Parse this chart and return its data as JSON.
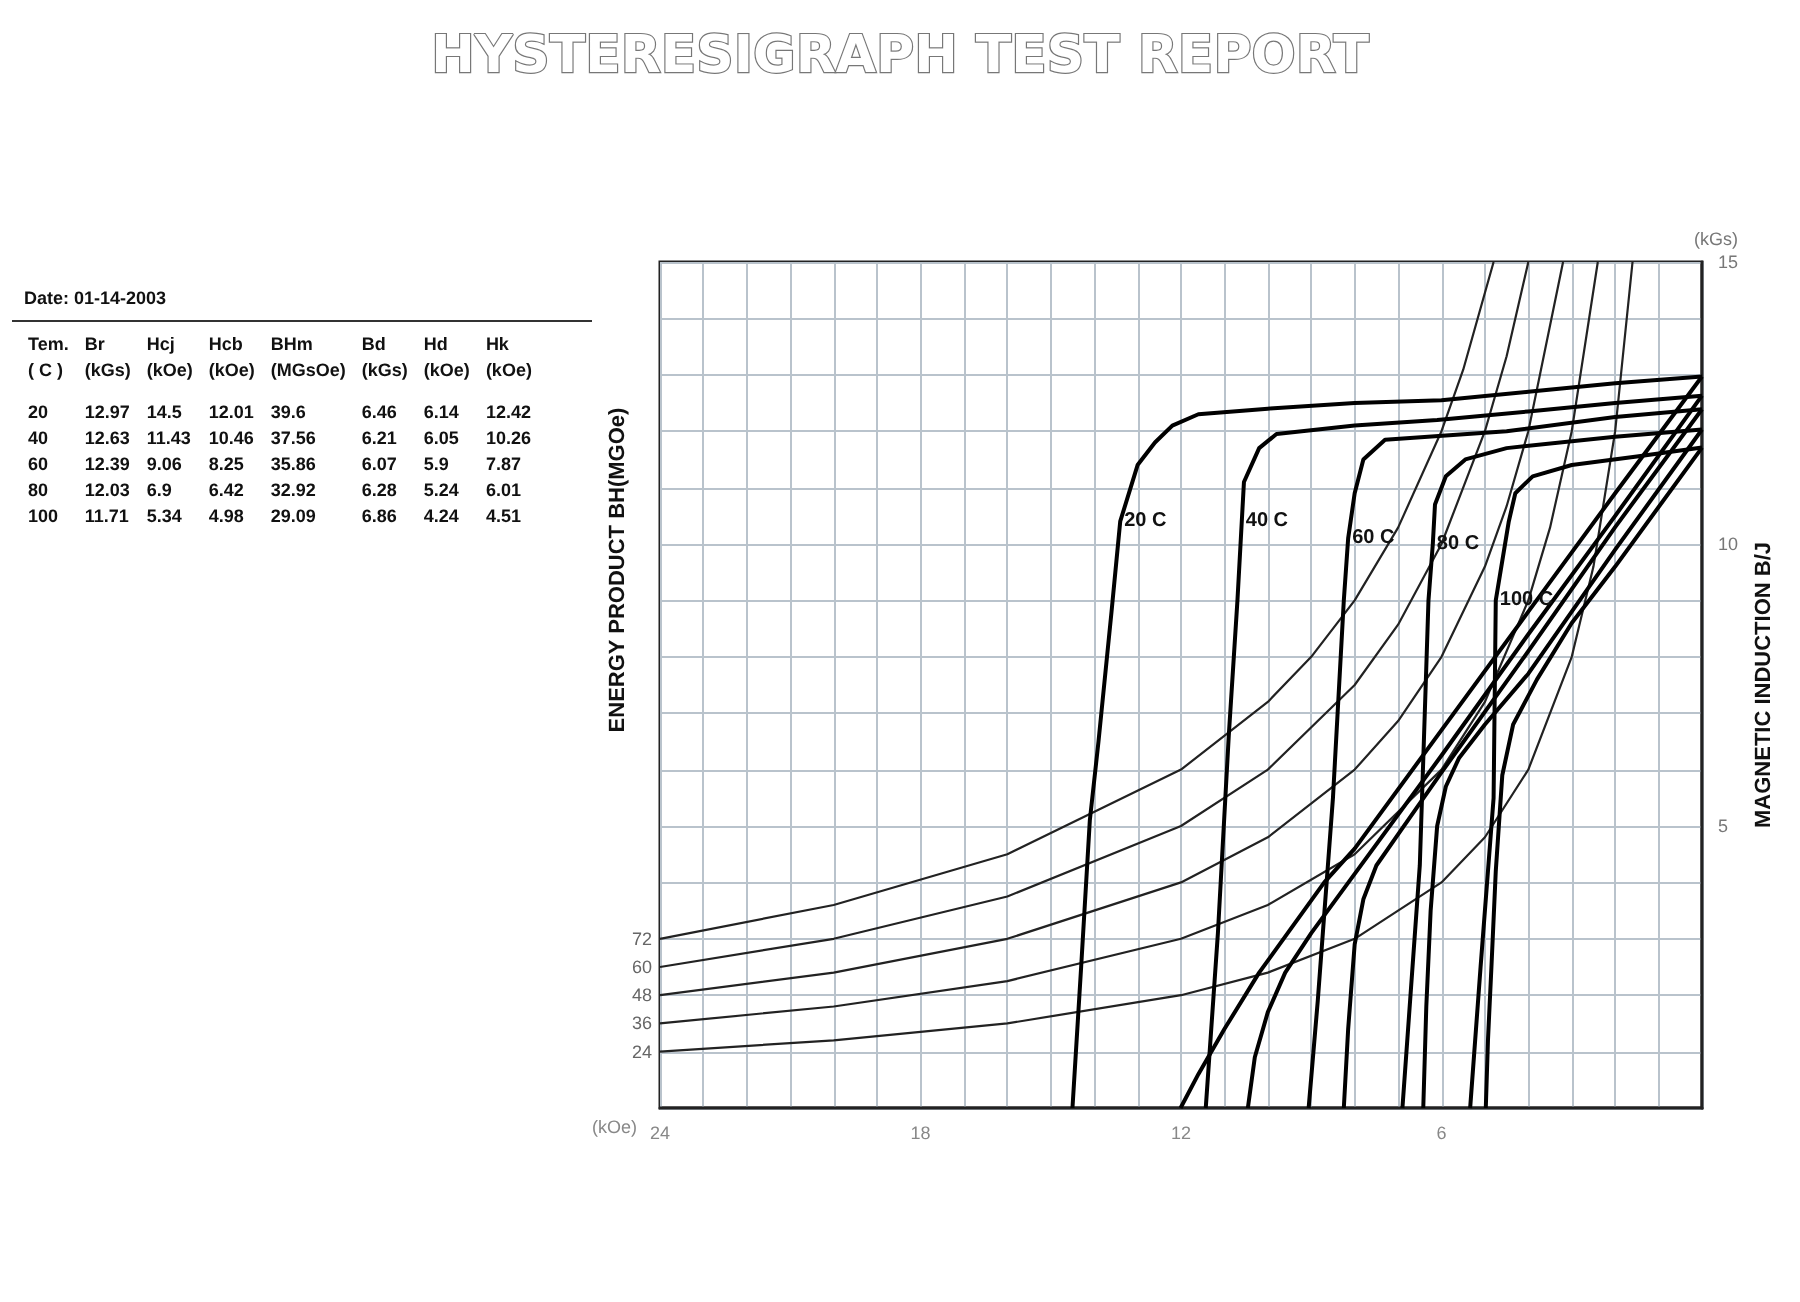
{
  "chart_data": {
    "type": "line",
    "title": "HYSTERESIGRAPH TEST REPORT",
    "xlabel": "(kOe)",
    "ylabel": "MAGNETIC INDUCTION B/J",
    "annotations": [
      "ENERGY PRODUCT BH(MGOe)",
      "(kGs)",
      "Date: 01-14-2003",
      "Tem.",
      "Br",
      "Hcj",
      "Hcb",
      "BHm",
      "Bd",
      "Hd",
      "Hk",
      "( C )",
      "(kGs)",
      "(kOe)",
      "(kOe)",
      "(MGsOe)",
      "(kGs)",
      "(kOe)",
      "(kOe)",
      "20",
      "12.97",
      "14.5",
      "12.01",
      "39.6",
      "6.46",
      "6.14",
      "12.42",
      "40",
      "12.63",
      "11.43",
      "10.46",
      "37.56",
      "6.21",
      "6.05",
      "10.26",
      "60",
      "12.39",
      "9.06",
      "8.25",
      "35.86",
      "6.07",
      "5.9",
      "7.87",
      "80",
      "12.03",
      "6.9",
      "6.42",
      "32.92",
      "6.28",
      "5.24",
      "6.01",
      "100",
      "11.71",
      "5.34",
      "4.98",
      "29.09",
      "6.86",
      "4.24",
      "4.51"
    ],
    "xlim": [
      24,
      0
    ],
    "ylim": [
      0,
      15
    ],
    "grid": true,
    "xticks": [
      {
        "value": 0,
        "label": null
      },
      {
        "value": 1,
        "label": null
      },
      {
        "value": 2,
        "label": null
      },
      {
        "value": 3,
        "label": null
      },
      {
        "value": 4,
        "label": null
      },
      {
        "value": 5,
        "label": null
      },
      6,
      {
        "value": 7,
        "label": null
      },
      {
        "value": 8,
        "label": null
      },
      {
        "value": 9,
        "label": null
      },
      {
        "value": 10,
        "label": null
      },
      {
        "value": 11,
        "label": null
      },
      12,
      {
        "value": 13,
        "label": null
      },
      {
        "value": 14,
        "label": null
      },
      {
        "value": 15,
        "label": null
      },
      {
        "value": 16,
        "label": null
      },
      {
        "value": 17,
        "label": null
      },
      18,
      {
        "value": 19,
        "label": null
      },
      {
        "value": 20,
        "label": null
      },
      {
        "value": 21,
        "label": null
      },
      {
        "value": 22,
        "label": null
      },
      {
        "value": 23,
        "label": null
      },
      24
    ],
    "yticks": [
      {
        "value": 0,
        "label": null
      },
      {
        "value": 1,
        "label": null
      },
      {
        "value": 2,
        "label": null
      },
      {
        "value": 3,
        "label": null
      },
      {
        "value": 4,
        "label": null
      },
      5,
      {
        "value": 6,
        "label": null
      },
      {
        "value": 7,
        "label": null
      },
      {
        "value": 8,
        "label": null
      },
      {
        "value": 9,
        "label": null
      },
      10,
      {
        "value": 11,
        "label": null
      },
      {
        "value": 12,
        "label": null
      },
      {
        "value": 13,
        "label": null
      },
      {
        "value": 14,
        "label": null
      },
      15
    ],
    "series": [
      {
        "name": "24",
        "color": "#222222",
        "x": [
          24,
          20,
          16,
          12,
          10,
          8,
          6,
          5,
          4,
          3,
          2.5,
          2,
          1.6
        ],
        "values": [
          1.0,
          1.2,
          1.5,
          2.0,
          2.4,
          3.0,
          4.0,
          4.8,
          6.0,
          8.0,
          9.6,
          12.0,
          15.0
        ]
      },
      {
        "name": "36",
        "color": "#222222",
        "x": [
          24,
          20,
          16,
          12,
          10,
          8,
          6,
          5,
          4,
          3.5,
          3,
          2.4
        ],
        "values": [
          1.5,
          1.8,
          2.25,
          3.0,
          3.6,
          4.5,
          6.0,
          7.2,
          9.0,
          10.29,
          12.0,
          15.0
        ]
      },
      {
        "name": "48",
        "color": "#222222",
        "x": [
          24,
          20,
          16,
          12,
          10,
          8,
          7,
          6,
          5,
          4.5,
          4,
          3.2
        ],
        "values": [
          2.0,
          2.4,
          3.0,
          4.0,
          4.8,
          6.0,
          6.86,
          8.0,
          9.6,
          10.67,
          12.0,
          15.0
        ]
      },
      {
        "name": "60",
        "color": "#222222",
        "x": [
          24,
          20,
          16,
          12,
          10,
          8,
          7,
          6,
          5,
          4.5,
          4
        ],
        "values": [
          2.5,
          3.0,
          3.75,
          5.0,
          6.0,
          7.5,
          8.57,
          10.0,
          12.0,
          13.33,
          15.0
        ]
      },
      {
        "name": "72",
        "color": "#222222",
        "x": [
          24,
          20,
          16,
          12,
          10,
          9,
          8,
          7,
          6,
          5.5,
          4.8
        ],
        "values": [
          3.0,
          3.6,
          4.5,
          6.0,
          7.2,
          8.0,
          9.0,
          10.29,
          12.0,
          13.09,
          15.0
        ]
      },
      {
        "name": "20 C",
        "color": "#000000",
        "x": [
          0,
          2,
          4,
          6,
          8,
          10,
          11.6,
          12.2,
          12.6,
          13.0,
          13.4,
          13.6,
          13.9,
          14.1,
          14.3,
          14.5
        ],
        "values": [
          12.97,
          12.85,
          12.7,
          12.55,
          12.5,
          12.4,
          12.3,
          12.1,
          11.8,
          11.4,
          10.4,
          8.8,
          6.5,
          5.1,
          2.5,
          0
        ]
      },
      {
        "name": "40 C",
        "color": "#000000",
        "x": [
          0,
          2,
          4,
          6.1,
          8,
          9.8,
          10.2,
          10.55,
          10.6,
          10.7,
          10.9,
          11.15,
          11.43
        ],
        "values": [
          12.63,
          12.5,
          12.35,
          12.2,
          12.1,
          11.95,
          11.7,
          11.1,
          10.4,
          9.0,
          6.6,
          3.1,
          0
        ]
      },
      {
        "name": "60 C",
        "color": "#000000",
        "x": [
          0,
          2,
          4.5,
          7.3,
          7.8,
          8.0,
          8.15,
          8.25,
          8.5,
          8.85,
          9.06
        ],
        "values": [
          12.39,
          12.25,
          12.0,
          11.85,
          11.5,
          10.9,
          10.1,
          9.0,
          5.5,
          1.9,
          0
        ]
      },
      {
        "name": "80 C",
        "color": "#000000",
        "x": [
          0,
          2,
          4.5,
          5.45,
          5.9,
          6.15,
          6.2,
          6.3,
          6.5,
          6.9
        ],
        "values": [
          12.03,
          11.9,
          11.7,
          11.5,
          11.2,
          10.7,
          10.0,
          9.0,
          4.3,
          0
        ]
      },
      {
        "name": "100 C",
        "color": "#000000",
        "x": [
          0,
          1.5,
          3.0,
          3.9,
          4.3,
          4.45,
          4.75,
          4.8,
          5.1,
          5.34
        ],
        "values": [
          11.71,
          11.55,
          11.4,
          11.2,
          10.9,
          10.4,
          9.0,
          5.5,
          2.5,
          0
        ]
      },
      {
        "color": "#000000",
        "x": [
          0,
          2,
          4,
          6,
          8,
          8.7,
          10.2,
          11,
          11.6,
          12.01
        ],
        "values": [
          12.97,
          10.9,
          8.8,
          6.7,
          4.6,
          4.0,
          2.4,
          1.4,
          0.6,
          0
        ]
      },
      {
        "color": "#000000",
        "x": [
          0,
          2,
          4,
          6,
          8,
          9,
          9.6,
          10.0,
          10.3,
          10.46
        ],
        "values": [
          12.63,
          10.5,
          8.4,
          6.25,
          4.15,
          3.1,
          2.4,
          1.7,
          0.9,
          0
        ]
      },
      {
        "color": "#000000",
        "x": [
          0,
          2,
          4,
          6,
          7,
          7.5,
          7.8,
          8.0,
          8.15,
          8.25
        ],
        "values": [
          12.39,
          10.3,
          8.1,
          5.95,
          4.85,
          4.3,
          3.7,
          2.9,
          1.4,
          0
        ]
      },
      {
        "color": "#000000",
        "x": [
          0,
          2,
          4,
          5,
          5.6,
          5.9,
          6.1,
          6.25,
          6.35,
          6.42
        ],
        "values": [
          12.03,
          9.9,
          7.7,
          6.8,
          6.2,
          5.7,
          5.0,
          3.5,
          1.8,
          0
        ]
      },
      {
        "color": "#000000",
        "x": [
          0,
          2,
          3,
          3.8,
          4.35,
          4.6,
          4.75,
          4.85,
          4.93,
          4.98
        ],
        "values": [
          11.71,
          9.6,
          8.6,
          7.6,
          6.8,
          5.9,
          4.2,
          2.5,
          1.2,
          0
        ]
      }
    ]
  }
}
